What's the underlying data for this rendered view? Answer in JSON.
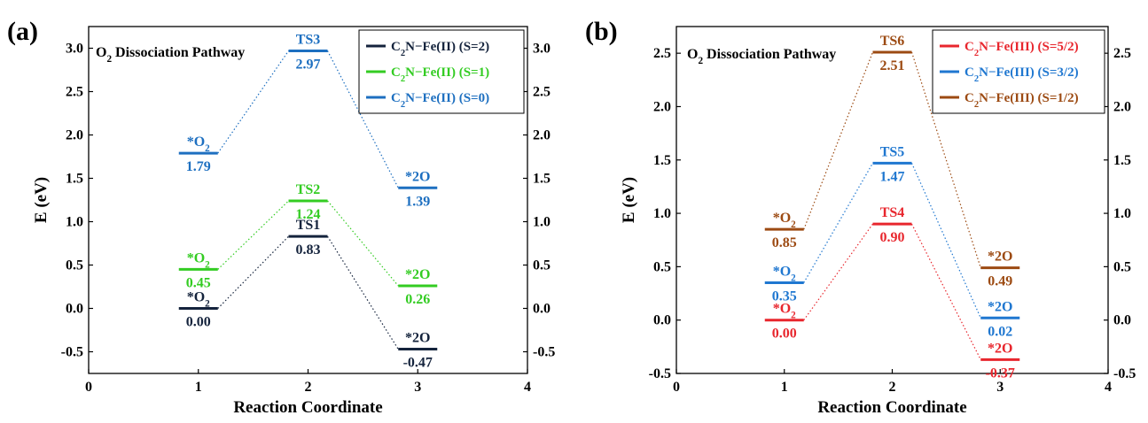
{
  "chart_data": [
    {
      "type": "line",
      "panel_label": "(a)",
      "title": "O₂ Dissociation Pathway",
      "xlabel": "Reaction Coordinate",
      "ylabel": "E (eV)",
      "xlim": [
        0,
        4
      ],
      "ylim": [
        -0.75,
        3.25
      ],
      "xticks": [
        0,
        1,
        2,
        3,
        4
      ],
      "yticks": [
        -0.5,
        0.0,
        0.5,
        1.0,
        1.5,
        2.0,
        2.5,
        3.0
      ],
      "ytick_labels": [
        "-0.5",
        "0.0",
        "0.5",
        "1.0",
        "1.5",
        "2.0",
        "2.5",
        "3.0"
      ],
      "right_axis": true,
      "legend_position": "top-right",
      "series": [
        {
          "name": "C₂N−Fe(II) (S=2)",
          "color": "#14233c",
          "x": [
            1,
            2,
            3
          ],
          "y": [
            0.0,
            0.83,
            -0.47
          ],
          "state_labels": [
            "*O₂",
            "TS1",
            "*2O"
          ],
          "value_labels": [
            "0.00",
            "0.83",
            "-0.47"
          ]
        },
        {
          "name": "C₂N−Fe(II) (S=1)",
          "color": "#33cc22",
          "x": [
            1,
            2,
            3
          ],
          "y": [
            0.45,
            1.24,
            0.26
          ],
          "state_labels": [
            "*O₂",
            "TS2",
            "*2O"
          ],
          "value_labels": [
            "0.45",
            "1.24",
            "0.26"
          ]
        },
        {
          "name": "C₂N−Fe(II) (S=0)",
          "color": "#1d6fc0",
          "x": [
            1,
            2,
            3
          ],
          "y": [
            1.79,
            2.97,
            1.39
          ],
          "state_labels": [
            "*O₂",
            "TS3",
            "*2O"
          ],
          "value_labels": [
            "1.79",
            "2.97",
            "1.39"
          ]
        }
      ]
    },
    {
      "type": "line",
      "panel_label": "(b)",
      "title": "O₂ Dissociation Pathway",
      "xlabel": "Reaction Coordinate",
      "ylabel": "E (eV)",
      "xlim": [
        0,
        4
      ],
      "ylim": [
        -0.5,
        2.75
      ],
      "xticks": [
        0,
        1,
        2,
        3,
        4
      ],
      "yticks": [
        -0.5,
        0.0,
        0.5,
        1.0,
        1.5,
        2.0,
        2.5
      ],
      "ytick_labels": [
        "-0.5",
        "0.0",
        "0.5",
        "1.0",
        "1.5",
        "2.0",
        "2.5"
      ],
      "right_axis": true,
      "legend_position": "top-right",
      "series": [
        {
          "name": "C₂N−Fe(III) (S=5/2)",
          "color": "#e8262d",
          "x": [
            1,
            2,
            3
          ],
          "y": [
            0.0,
            0.9,
            -0.37
          ],
          "state_labels": [
            "*O₂",
            "TS4",
            "*2O"
          ],
          "value_labels": [
            "0.00",
            "0.90",
            "-0.37"
          ]
        },
        {
          "name": "C₂N−Fe(III) (S=3/2)",
          "color": "#1f77d0",
          "x": [
            1,
            2,
            3
          ],
          "y": [
            0.35,
            1.47,
            0.02
          ],
          "state_labels": [
            "*O₂",
            "TS5",
            "*2O"
          ],
          "value_labels": [
            "0.35",
            "1.47",
            "0.02"
          ]
        },
        {
          "name": "C₂N−Fe(III) (S=1/2)",
          "color": "#9c4a12",
          "x": [
            1,
            2,
            3
          ],
          "y": [
            0.85,
            2.51,
            0.49
          ],
          "state_labels": [
            "*O₂",
            "TS6",
            "*2O"
          ],
          "value_labels": [
            "0.85",
            "2.51",
            "0.49"
          ]
        }
      ]
    }
  ]
}
